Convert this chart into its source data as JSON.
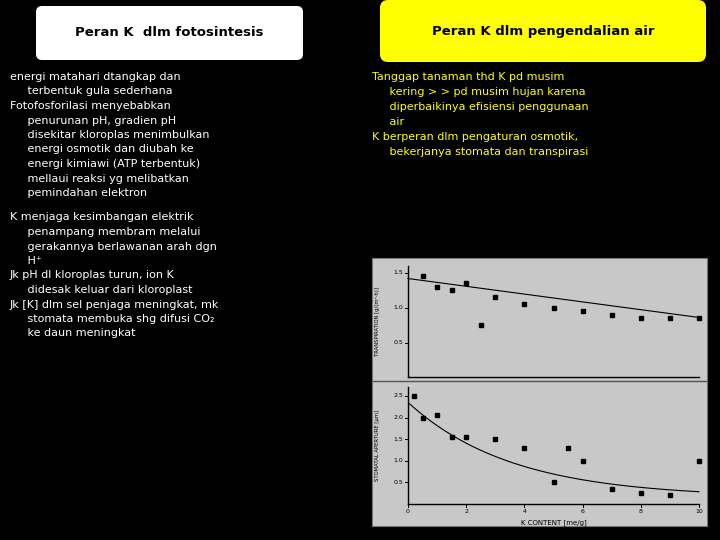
{
  "bg_color": "#000000",
  "left_header": "Peran K  dlm fotosintesis",
  "left_header_bg": "#ffffff",
  "left_header_color": "#000000",
  "right_header": "Peran K dlm pengendalian air",
  "right_header_bg": "#ffff00",
  "right_header_color": "#000000",
  "left_text_color": "#ffffff",
  "right_text_color": "#ffff00",
  "font_size_main": 8.0,
  "font_size_header": 9.5,
  "left_lines1": [
    "energi matahari dtangkap dan",
    "     terbentuk gula sederhana",
    "Fotofosforilasi menyebabkan",
    "     penurunan pH, gradien pH",
    "     disekitar kloroplas menimbulkan",
    "     energi osmotik dan diubah ke",
    "     energi kimiawi (ATP terbentuk)",
    "     mellaui reaksi yg melibatkan",
    "     pemindahan elektron"
  ],
  "left_lines2": [
    "K menjaga kesimbangan elektrik",
    "     penampang membram melalui",
    "     gerakannya berlawanan arah dgn",
    "     H⁺",
    "Jk pH dl kloroplas turun, ion K",
    "     didesak keluar dari kloroplast",
    "Jk [K] dlm sel penjaga meningkat, mk",
    "     stomata membuka shg difusi CO₂",
    "     ke daun meningkat"
  ],
  "right_lines": [
    "Tanggap tanaman thd K pd musim",
    "     kering > > pd musim hujan karena",
    "     diperbaikinya efisiensi penggunaan",
    "     air",
    "K berperan dlm pengaturan osmotik,",
    "     bekerjanya stomata dan transpirasi"
  ],
  "x_data_upper": [
    0.5,
    1.0,
    1.5,
    2.0,
    2.5,
    3.0,
    4.0,
    5.0,
    6.0,
    7.0,
    8.0,
    9.0,
    10.0
  ],
  "y_data_upper": [
    1.45,
    1.3,
    1.25,
    1.35,
    0.75,
    1.15,
    1.05,
    1.0,
    0.95,
    0.9,
    0.85,
    0.85,
    0.85
  ],
  "x_data_lower": [
    0.2,
    0.5,
    1.0,
    1.5,
    2.0,
    3.0,
    4.0,
    5.0,
    5.5,
    6.0,
    7.0,
    8.0,
    9.0,
    10.0
  ],
  "y_data_lower": [
    2.5,
    2.0,
    2.05,
    1.55,
    1.55,
    1.5,
    1.3,
    0.5,
    1.3,
    1.0,
    0.35,
    0.25,
    0.2,
    1.0
  ]
}
